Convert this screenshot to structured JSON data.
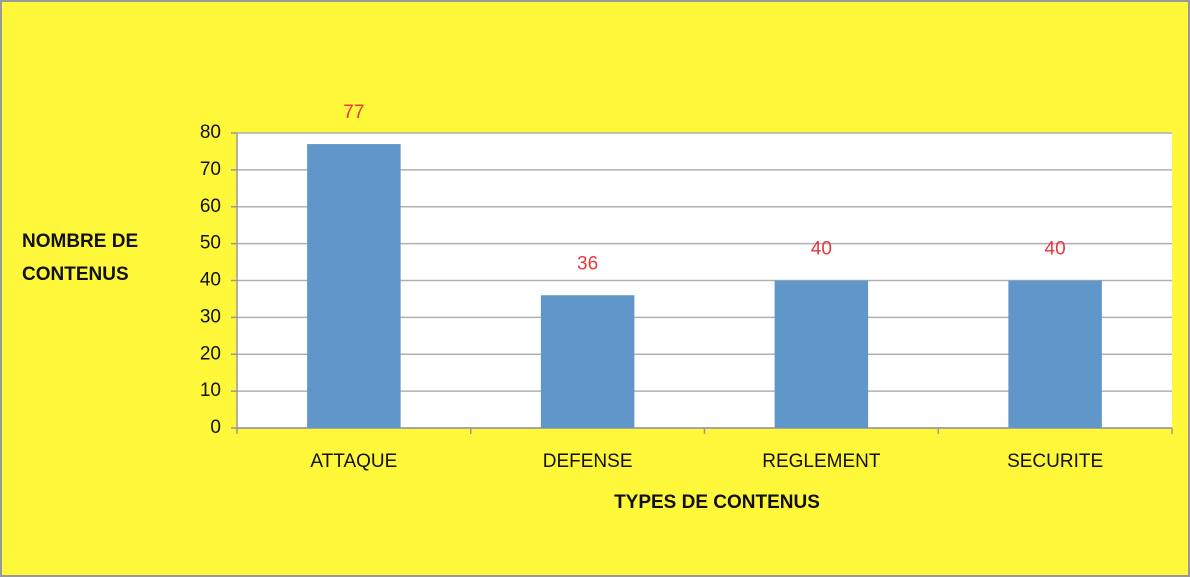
{
  "chart_data": {
    "type": "bar",
    "x_label": "TYPES DE CONTENUS",
    "y_label": "NOMBRE DE CONTENUS",
    "categories": [
      "ATTAQUE",
      "DEFENSE",
      "REGLEMENT",
      "SECURITE"
    ],
    "values": [
      77,
      36,
      40,
      40
    ],
    "color": "#6096c9",
    "label_color": "#e8383d",
    "ylim": [
      0,
      80
    ],
    "yticks": [
      0,
      10,
      20,
      30,
      40,
      50,
      60,
      70,
      80
    ],
    "grid": true
  }
}
